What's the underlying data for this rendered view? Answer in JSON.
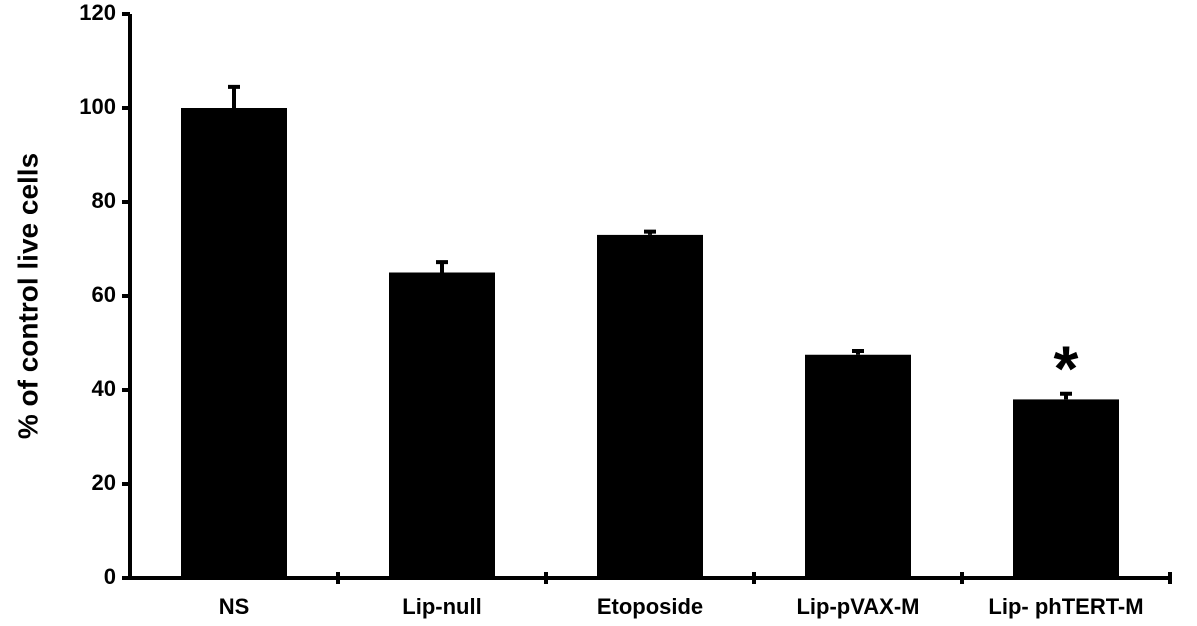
{
  "chart_data": {
    "type": "bar",
    "y_label": "% of control live cells",
    "categories": [
      "NS",
      "Lip-null",
      "Etoposide",
      "Lip-pVAX-M",
      "Lip- phTERT-M"
    ],
    "values": [
      100,
      65,
      73,
      47.5,
      38
    ],
    "errors": [
      4.5,
      2.2,
      0.7,
      0.8,
      1.2
    ],
    "color": "#000000",
    "ylim": [
      0,
      120
    ],
    "yticks": [
      0,
      20,
      40,
      60,
      80,
      100,
      120
    ],
    "grid": false,
    "annotation": "*"
  }
}
